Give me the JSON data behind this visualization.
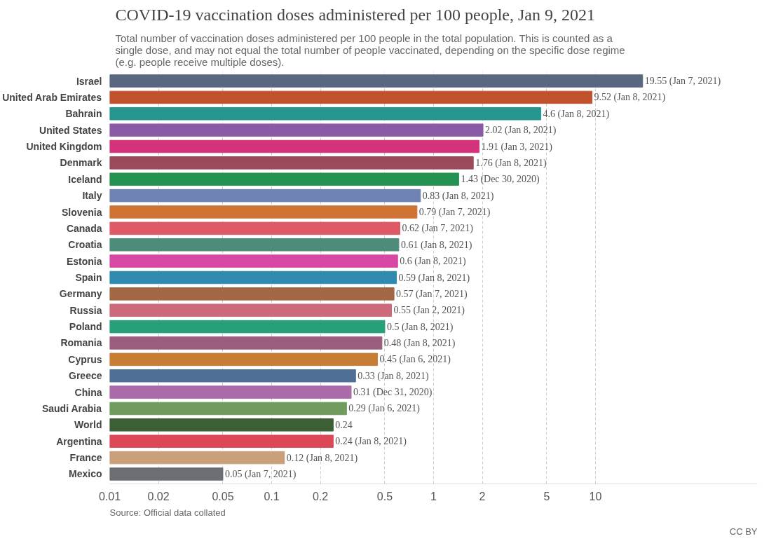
{
  "chart_data": {
    "type": "bar",
    "orientation": "horizontal",
    "log": "x",
    "grid": "x",
    "title": "COVID-19 vaccination doses administered per 100 people, Jan 9, 2021",
    "subtitle": "Total number of vaccination doses administered per 100 people in the total population. This is counted as a single dose, and may not equal the total number of people vaccinated, depending on the specific dose regime (e.g. people receive multiple doses).",
    "categories": [
      "Israel",
      "United Arab Emirates",
      "Bahrain",
      "United States",
      "United Kingdom",
      "Denmark",
      "Iceland",
      "Italy",
      "Slovenia",
      "Canada",
      "Croatia",
      "Estonia",
      "Spain",
      "Germany",
      "Russia",
      "Poland",
      "Romania",
      "Cyprus",
      "Greece",
      "China",
      "Saudi Arabia",
      "World",
      "Argentina",
      "France",
      "Mexico"
    ],
    "values": [
      19.55,
      9.52,
      4.6,
      2.02,
      1.91,
      1.76,
      1.43,
      0.83,
      0.79,
      0.62,
      0.61,
      0.6,
      0.59,
      0.57,
      0.55,
      0.5,
      0.48,
      0.45,
      0.33,
      0.31,
      0.29,
      0.24,
      0.24,
      0.12,
      0.05
    ],
    "value_labels": [
      "19.55 (Jan 7, 2021)",
      "9.52 (Jan 8, 2021)",
      "4.6 (Jan 8, 2021)",
      "2.02 (Jan 8, 2021)",
      "1.91 (Jan 3, 2021)",
      "1.76 (Jan 8, 2021)",
      "1.43 (Dec 30, 2020)",
      "0.83 (Jan 8, 2021)",
      "0.79 (Jan 7, 2021)",
      "0.62 (Jan 7, 2021)",
      "0.61 (Jan 8, 2021)",
      "0.6 (Jan 8, 2021)",
      "0.59 (Jan 8, 2021)",
      "0.57 (Jan 7, 2021)",
      "0.55 (Jan 2, 2021)",
      "0.5 (Jan 8, 2021)",
      "0.48 (Jan 8, 2021)",
      "0.45 (Jan 6, 2021)",
      "0.33 (Jan 8, 2021)",
      "0.31 (Dec 31, 2020)",
      "0.29 (Jan 6, 2021)",
      "0.24",
      "0.24 (Jan 8, 2021)",
      "0.12 (Jan 8, 2021)",
      "0.05 (Jan 7, 2021)"
    ],
    "colors": [
      "#596880",
      "#c0532d",
      "#26958f",
      "#8a5aa6",
      "#d4337c",
      "#9a4a5b",
      "#23914f",
      "#6f82b2",
      "#cf7335",
      "#dd5a66",
      "#4e8b7b",
      "#d947a4",
      "#2f8ab0",
      "#a26744",
      "#cc6a7c",
      "#27a07a",
      "#9b5d7e",
      "#c77d35",
      "#4f6f96",
      "#ab6aaa",
      "#6f9b5c",
      "#3c5f35",
      "#dc4858",
      "#c9a07a",
      "#6d6e73"
    ],
    "xlim": [
      0.01,
      100
    ],
    "xticks": [
      0.01,
      0.02,
      0.05,
      0.1,
      0.2,
      0.5,
      1,
      2,
      5,
      10
    ],
    "annotations": [
      "Source: Official data collated",
      "CC BY"
    ]
  }
}
